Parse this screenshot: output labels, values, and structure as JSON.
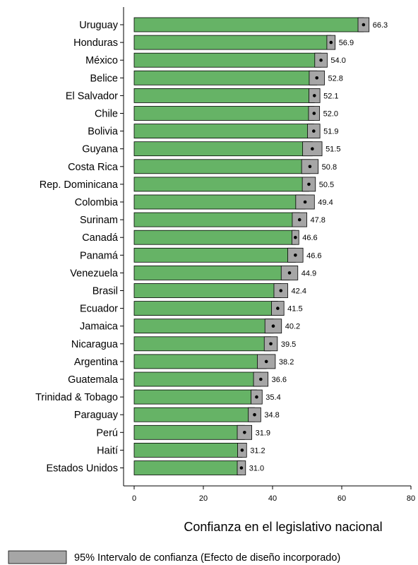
{
  "chart_data": {
    "type": "bar",
    "orientation": "horizontal",
    "xlabel": "Confianza en el legislativo nacional",
    "ylabel": "",
    "xlim": [
      0,
      80
    ],
    "xticks": [
      0,
      20,
      40,
      60,
      80
    ],
    "grid": false,
    "legend_position": "bottom",
    "legend_label": "95% Intervalo de confianza (Efecto de diseño incorporado)",
    "bar_color": "#66b366",
    "ci_color": "#a6a6a6",
    "categories": [
      "Uruguay",
      "Honduras",
      "México",
      "Belice",
      "El Salvador",
      "Chile",
      "Bolivia",
      "Guyana",
      "Costa Rica",
      "Rep. Dominicana",
      "Colombia",
      "Surinam",
      "Canadá",
      "Panamá",
      "Venezuela",
      "Brasil",
      "Ecuador",
      "Jamaica",
      "Nicaragua",
      "Argentina",
      "Guatemala",
      "Trinidad & Tobago",
      "Paraguay",
      "Perú",
      "Haití",
      "Estados Unidos"
    ],
    "values": [
      66.3,
      56.9,
      54.0,
      52.8,
      52.1,
      52.0,
      51.9,
      51.5,
      50.8,
      50.5,
      49.4,
      47.8,
      46.6,
      46.6,
      44.9,
      42.4,
      41.5,
      40.2,
      39.5,
      38.2,
      36.6,
      35.4,
      34.8,
      31.9,
      31.2,
      31.0
    ],
    "value_labels": [
      "66.3",
      "56.9",
      "54.0",
      "52.8",
      "52.1",
      "52.0",
      "51.9",
      "51.5",
      "50.8",
      "50.5",
      "49.4",
      "47.8",
      "46.6",
      "46.6",
      "44.9",
      "42.4",
      "41.5",
      "40.2",
      "39.5",
      "38.2",
      "36.6",
      "35.4",
      "34.8",
      "31.9",
      "31.2",
      "31.0"
    ],
    "ci_low": [
      64.7,
      55.7,
      52.2,
      50.6,
      50.5,
      50.4,
      50.1,
      48.7,
      48.4,
      48.6,
      46.7,
      45.7,
      45.6,
      44.4,
      42.5,
      40.4,
      39.7,
      37.8,
      37.6,
      35.6,
      34.5,
      33.8,
      33.0,
      29.8,
      29.9,
      29.8
    ],
    "ci_high": [
      67.9,
      58.1,
      55.8,
      55.0,
      53.7,
      53.6,
      53.7,
      54.3,
      53.2,
      52.4,
      52.1,
      49.9,
      47.6,
      48.8,
      47.3,
      44.4,
      43.3,
      42.6,
      41.4,
      40.8,
      38.7,
      37.0,
      36.6,
      34.0,
      32.5,
      32.2
    ]
  }
}
